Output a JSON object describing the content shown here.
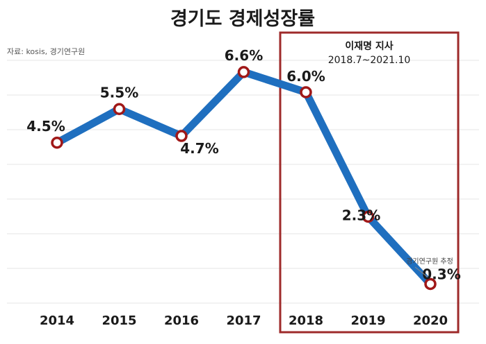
{
  "chart_data": {
    "type": "line",
    "title": "경기도 경제성장률",
    "source": "자료: kosis, 경기연구원",
    "xlabel": "",
    "ylabel": "",
    "ylim": [
      0,
      7
    ],
    "grid": true,
    "categories": [
      "2014",
      "2015",
      "2016",
      "2017",
      "2018",
      "2019",
      "2020"
    ],
    "series": [
      {
        "name": "경기도 경제성장률",
        "values": [
          4.5,
          5.5,
          4.7,
          6.6,
          6.0,
          2.3,
          0.3
        ],
        "labels": [
          "4.5%",
          "5.5%",
          "4.7%",
          "6.6%",
          "6.0%",
          "2.3%",
          "0.3%"
        ]
      }
    ],
    "highlight": {
      "title": "이재명 지사",
      "period": "2018.7~2021.10",
      "range": [
        "2018",
        "2020"
      ]
    },
    "annotation": {
      "category": "2020",
      "text": "경기연구원 추정"
    },
    "colors": {
      "line": "#1f6fbf",
      "marker_stroke": "#a01818",
      "marker_fill": "#ffffff",
      "highlight_border": "#9e2a2a",
      "grid": "#e4e4e4"
    }
  }
}
